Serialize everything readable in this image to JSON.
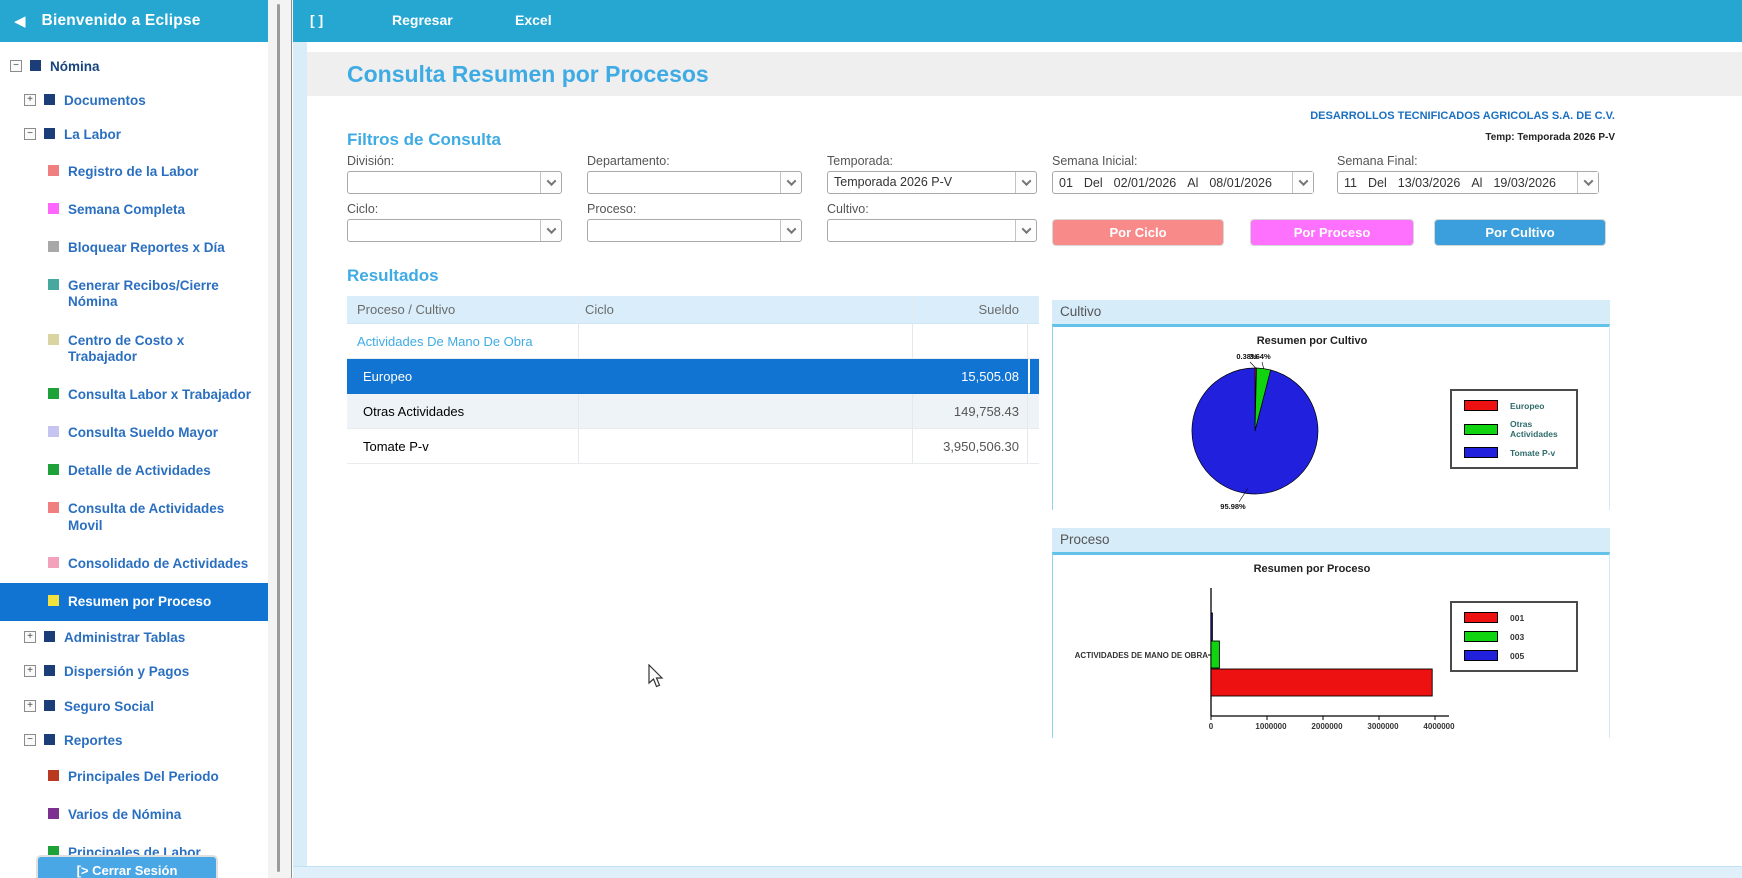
{
  "sidebar": {
    "header": {
      "title": "Bienvenido a Eclipse",
      "back_icon": "left-arrow"
    },
    "tree": [
      {
        "label": "Nómina",
        "level": 0,
        "branch": true,
        "expander": "minus"
      },
      {
        "label": "Documentos",
        "level": 1,
        "branch": true,
        "expander": "plus"
      },
      {
        "label": "La Labor",
        "level": 1,
        "branch": true,
        "expander": "minus"
      },
      {
        "label": "Registro de la Labor",
        "level": 2,
        "color": "#f08080"
      },
      {
        "label": "Semana Completa",
        "level": 2,
        "color": "#ff66ff"
      },
      {
        "label": "Bloquear Reportes x Día",
        "level": 2,
        "color": "#a8a8a8"
      },
      {
        "label": "Generar Recibos/Cierre Nómina",
        "level": 2,
        "color": "#46a89f"
      },
      {
        "label": "Centro de Costo x Trabajador",
        "level": 2,
        "color": "#d8d5a2"
      },
      {
        "label": "Consulta Labor x Trabajador",
        "level": 2,
        "color": "#1fa13a"
      },
      {
        "label": "Consulta Sueldo Mayor",
        "level": 2,
        "color": "#c6c4f0"
      },
      {
        "label": "Detalle de Actividades",
        "level": 2,
        "color": "#1fa13a"
      },
      {
        "label": "Consulta de Actividades Movil",
        "level": 2,
        "color": "#f08080"
      },
      {
        "label": "Consolidado de Actividades",
        "level": 2,
        "color": "#f2a3bb"
      },
      {
        "label": "Resumen por Proceso",
        "level": 2,
        "color": "#f3e13e",
        "selected": true
      },
      {
        "label": "Administrar Tablas",
        "level": 1,
        "branch": true,
        "expander": "plus"
      },
      {
        "label": "Dispersión y Pagos",
        "level": 1,
        "branch": true,
        "expander": "plus"
      },
      {
        "label": "Seguro Social",
        "level": 1,
        "branch": true,
        "expander": "plus"
      },
      {
        "label": "Reportes",
        "level": 1,
        "branch": true,
        "expander": "minus"
      },
      {
        "label": "Principales Del Periodo",
        "level": 2,
        "color": "#b93a1e"
      },
      {
        "label": "Varios de Nómina",
        "level": 2,
        "color": "#7c3090"
      },
      {
        "label": "Principales de Labor",
        "level": 2,
        "color": "#1fa13a"
      }
    ],
    "branch_bullet_color": "#1c3e78",
    "logout_label": "[> Cerrar Sesión"
  },
  "topbar": {
    "controls": "[ ]",
    "items": [
      "Regresar",
      "Excel"
    ]
  },
  "page": {
    "title": "Consulta Resumen por Procesos",
    "company": "DESARROLLOS TECNIFICADOS AGRICOLAS S.A. DE C.V.",
    "temporada_note": "Temp: Temporada 2026 P-V"
  },
  "filters": {
    "heading": "Filtros de Consulta",
    "division": {
      "label": "División:",
      "value": ""
    },
    "departamento": {
      "label": "Departamento:",
      "value": ""
    },
    "temporada": {
      "label": "Temporada:",
      "value": "Temporada 2026 P-V"
    },
    "semana_inicial": {
      "label": "Semana Inicial:",
      "num": "01",
      "del_label": "Del",
      "from": "02/01/2026",
      "al_label": "Al",
      "to": "08/01/2026"
    },
    "semana_final": {
      "label": "Semana Final:",
      "num": "11",
      "del_label": "Del",
      "from": "13/03/2026",
      "al_label": "Al",
      "to": "19/03/2026"
    },
    "ciclo": {
      "label": "Ciclo:",
      "value": ""
    },
    "proceso": {
      "label": "Proceso:",
      "value": ""
    },
    "cultivo": {
      "label": "Cultivo:",
      "value": ""
    },
    "buttons": [
      {
        "label": "Por Ciclo",
        "color": "#f98a8a",
        "x": 759,
        "w": 172
      },
      {
        "label": "Por Proceso",
        "color": "#fe70fe",
        "x": 957,
        "w": 164
      },
      {
        "label": "Por Cultivo",
        "color": "#3a9fdc",
        "x": 1141,
        "w": 172
      }
    ]
  },
  "results": {
    "heading": "Resultados",
    "table": {
      "columns": [
        "Proceso / Cultivo",
        "Ciclo",
        "Sueldo"
      ],
      "rows": [
        {
          "proceso": "Actividades De Mano De Obra",
          "ciclo": "",
          "sueldo": "",
          "style": "group"
        },
        {
          "proceso": "Europeo",
          "ciclo": "",
          "sueldo": "15,505.08",
          "style": "selected"
        },
        {
          "proceso": "Otras Actividades",
          "ciclo": "",
          "sueldo": "149,758.43",
          "style": "alt"
        },
        {
          "proceso": "Tomate P-v",
          "ciclo": "",
          "sueldo": "3,950,506.30",
          "style": "normal"
        }
      ]
    }
  },
  "panels": {
    "cultivo_title": "Cultivo",
    "proceso_title": "Proceso"
  },
  "chart_data": [
    {
      "type": "pie",
      "title": "Resumen por Cultivo",
      "labels": [
        "Europeo",
        "Otras Actividades",
        "Tomate P-v"
      ],
      "values": [
        0.38,
        3.64,
        95.98
      ],
      "value_unit": "percent",
      "slice_labels": [
        "0.38%",
        "3.64%",
        "95.98%"
      ],
      "colors": [
        "#ee1111",
        "#11d411",
        "#2121dd"
      ],
      "legend_position": "right"
    },
    {
      "type": "bar",
      "orientation": "horizontal",
      "title": "Resumen por Proceso",
      "category": "ACTIVIDADES DE MANO DE OBRA",
      "series": [
        {
          "name": "001",
          "value": 3950506,
          "color": "#ee1111"
        },
        {
          "name": "003",
          "value": 149758,
          "color": "#11d411"
        },
        {
          "name": "005",
          "value": 15505,
          "color": "#2121dd"
        }
      ],
      "xlim": [
        0,
        4000000
      ],
      "x_ticks": [
        "0",
        "1000000",
        "2000000",
        "3000000",
        "4000000"
      ],
      "legend_position": "right"
    }
  ]
}
